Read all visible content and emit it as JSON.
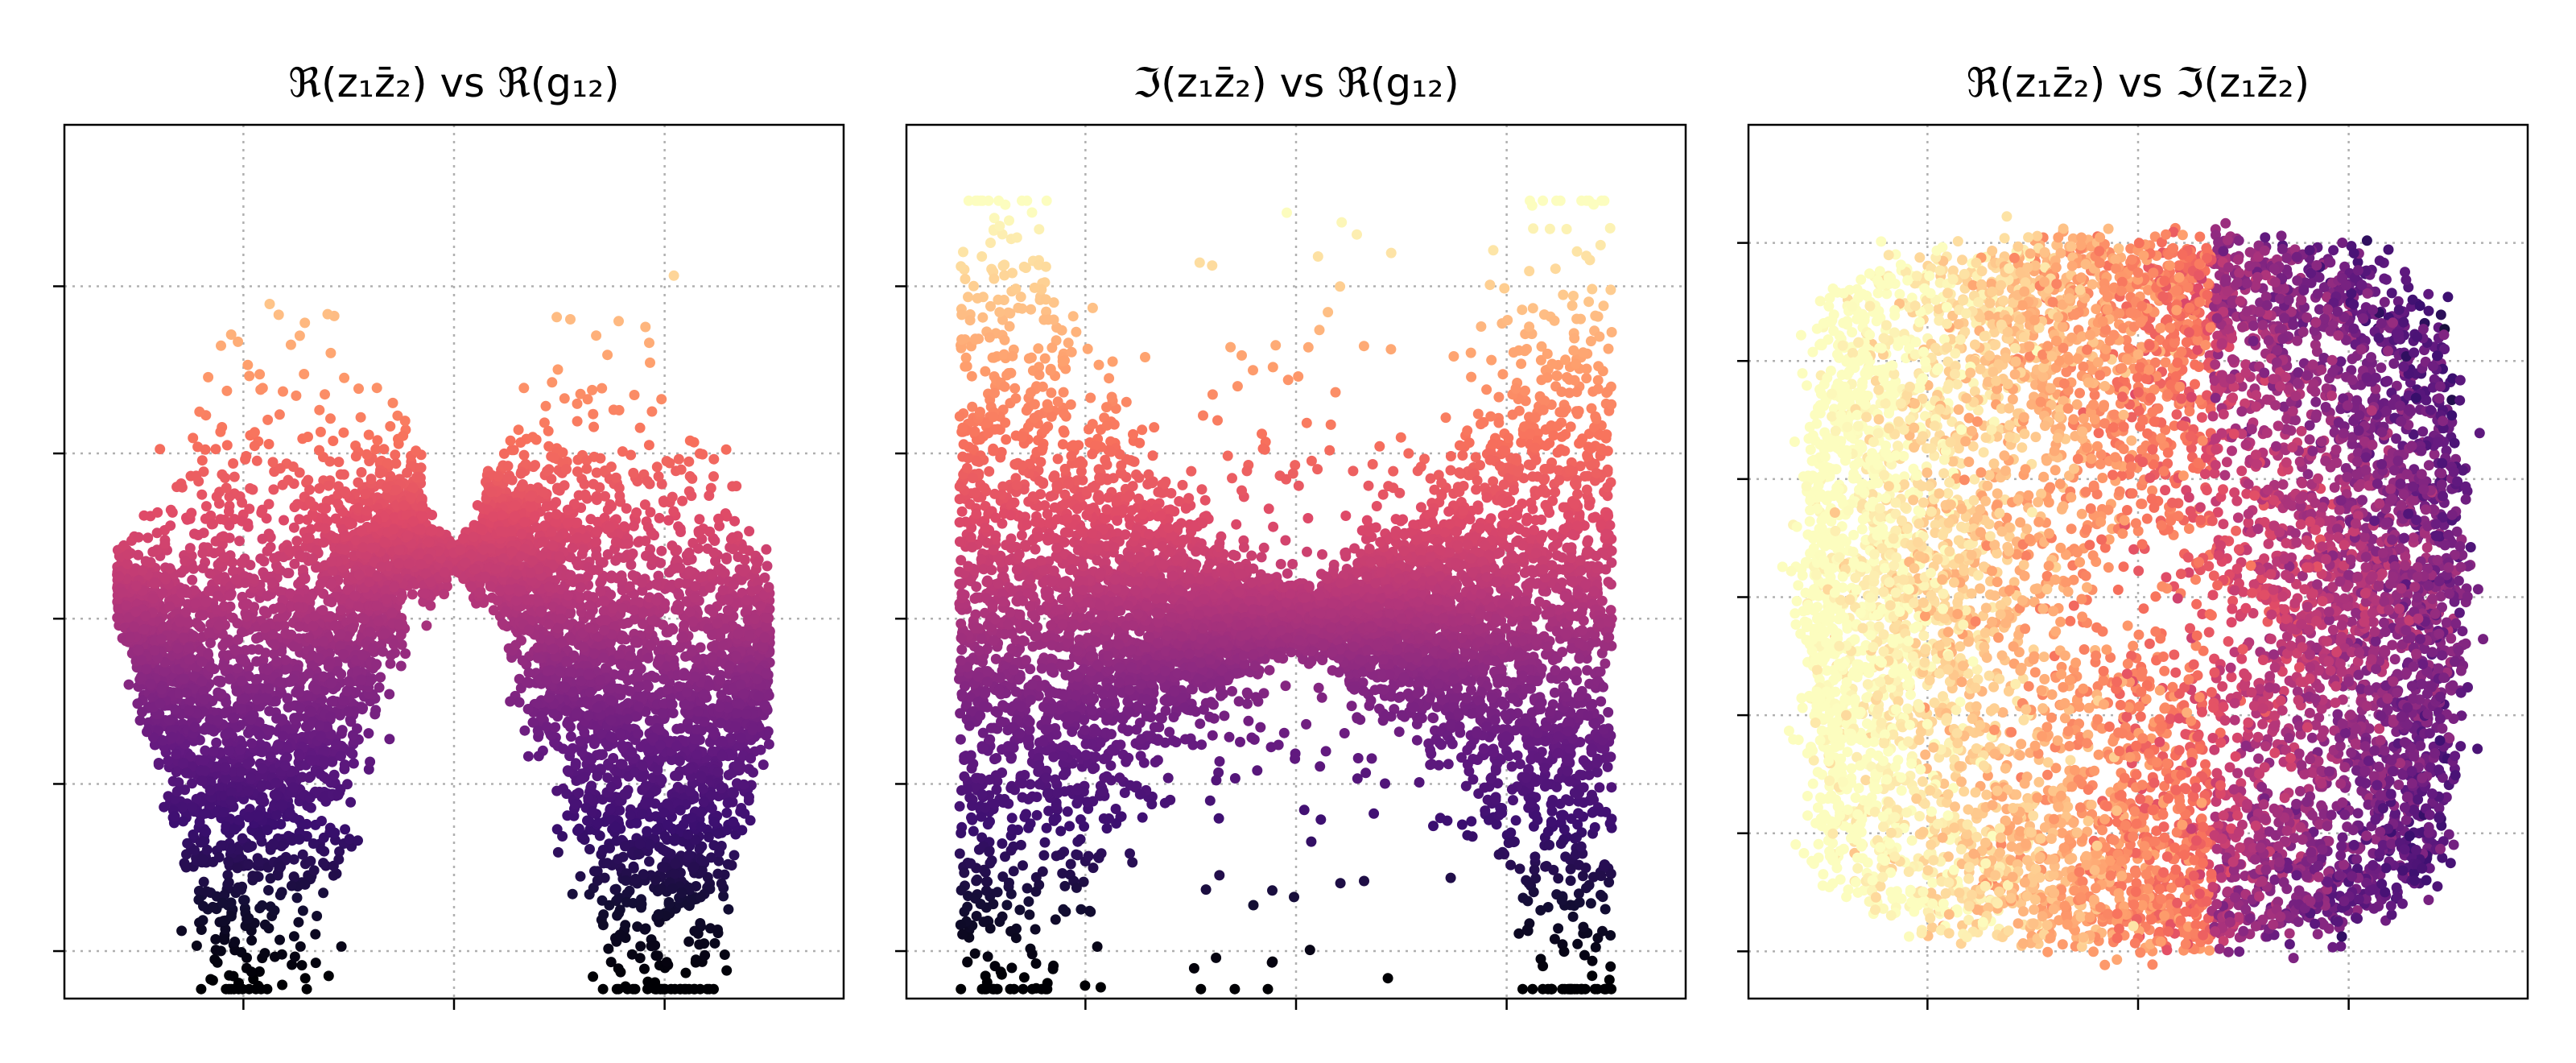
{
  "figure": {
    "colormap": "magma",
    "grid": "dotted",
    "tick_labels_shown": false
  },
  "chart_data": [
    {
      "type": "scatter",
      "title": "ℜ(z₁z̄₂) vs ℜ(g₁₂)",
      "xlabel": "",
      "ylabel": "",
      "grid": true,
      "xlim": [
        -1.7,
        2.0
      ],
      "ylim": [
        -2.0,
        2.6
      ],
      "xticks": [
        -0.85,
        0.15,
        1.15
      ],
      "yticks": [
        -1.75,
        -0.87,
        0.0,
        0.87,
        1.75
      ],
      "x_range_data": [
        -1.45,
        1.65
      ],
      "y_range_data": [
        -1.95,
        2.2
      ],
      "shape": "sinusoidal band: peak near x=-0.85 (y≈1.8), dip near x=0.2 (y≈0.05), trough near x=1.15 (y≈-1.8)",
      "color_encoding": "y value (dark = low, light = high)"
    },
    {
      "type": "scatter",
      "title": "ℑ(z₁z̄₂) vs ℜ(g₁₂)",
      "xlabel": "",
      "ylabel": "",
      "grid": true,
      "xlim": [
        -1.7,
        2.0
      ],
      "ylim": [
        -2.0,
        2.6
      ],
      "xticks": [
        -0.85,
        0.15,
        1.15
      ],
      "yticks": [
        -1.75,
        -0.87,
        0.0,
        0.87,
        1.75
      ],
      "x_range_data": [
        -1.45,
        1.65
      ],
      "y_range_data": [
        -1.95,
        2.2
      ],
      "shape": "bow-tie band: high-y lobes at x≈-1.05 and x≈1.25, low-y lobes at x≈-1.1 and x≈1.1, sparse spread near x≈0.15",
      "color_encoding": "y value (dark = low, light = high)"
    },
    {
      "type": "scatter",
      "title": "ℜ(z₁z̄₂) vs ℑ(z₁z̄₂)",
      "xlabel": "",
      "ylabel": "",
      "grid": true,
      "xlim": [
        -1.7,
        2.0
      ],
      "ylim": [
        -1.7,
        2.0
      ],
      "xticks": [
        -0.85,
        0.15,
        1.15
      ],
      "yticks": [
        -1.5,
        -1.0,
        -0.5,
        0.0,
        0.5,
        1.0,
        1.5
      ],
      "x_range_data": [
        -1.5,
        1.75
      ],
      "y_range_data": [
        -1.5,
        1.55
      ],
      "shape": "filled roughly square disk of points",
      "color_encoding": "light on left/lower-left, dark on right upper and lower corners"
    }
  ]
}
